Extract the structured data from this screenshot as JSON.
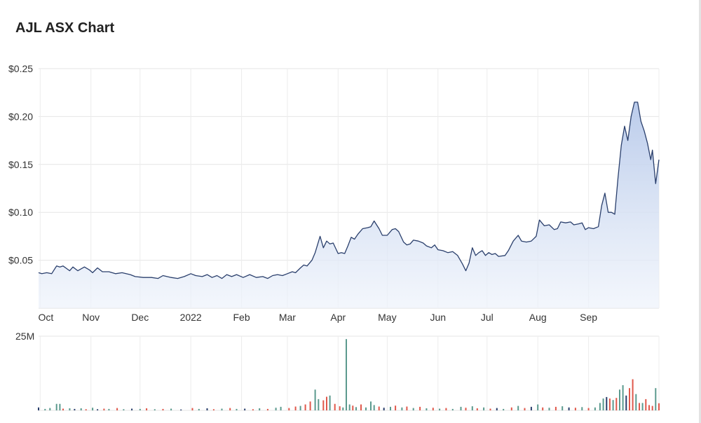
{
  "page": {
    "title": "AJL ASX Chart"
  },
  "chart_data": {
    "type": "area",
    "title": "AJL ASX Chart",
    "ylim": [
      0,
      0.25
    ],
    "y_ticks": [
      "$0.25",
      "$0.20",
      "$0.15",
      "$0.10",
      "$0.05"
    ],
    "y_tick_values": [
      0.25,
      0.2,
      0.15,
      0.1,
      0.05
    ],
    "x_ticks": [
      "Oct",
      "Nov",
      "Dec",
      "2022",
      "Feb",
      "Mar",
      "Apr",
      "May",
      "Jun",
      "Jul",
      "Aug",
      "Sep"
    ],
    "x_tick_dates": [
      "2021-10-01",
      "2021-11-01",
      "2021-12-01",
      "2022-01-01",
      "2022-02-01",
      "2022-03-01",
      "2022-04-01",
      "2022-05-01",
      "2022-06-01",
      "2022-07-01",
      "2022-08-01",
      "2022-09-01"
    ],
    "x_range": [
      "2021-09-30",
      "2022-09-27"
    ],
    "grid": true,
    "line_color": "#2a3f6c",
    "fill_color": "#c9d7f0",
    "series": [
      {
        "points": [
          [
            "2021-09-30",
            0.037
          ],
          [
            "2021-10-02",
            0.036
          ],
          [
            "2021-10-05",
            0.037
          ],
          [
            "2021-10-08",
            0.036
          ],
          [
            "2021-10-11",
            0.044
          ],
          [
            "2021-10-13",
            0.043
          ],
          [
            "2021-10-15",
            0.044
          ],
          [
            "2021-10-19",
            0.039
          ],
          [
            "2021-10-21",
            0.043
          ],
          [
            "2021-10-24",
            0.039
          ],
          [
            "2021-10-28",
            0.043
          ],
          [
            "2021-10-31",
            0.04
          ],
          [
            "2021-11-02",
            0.037
          ],
          [
            "2021-11-05",
            0.042
          ],
          [
            "2021-11-08",
            0.038
          ],
          [
            "2021-11-12",
            0.038
          ],
          [
            "2021-11-16",
            0.036
          ],
          [
            "2021-11-20",
            0.037
          ],
          [
            "2021-11-25",
            0.035
          ],
          [
            "2021-11-28",
            0.033
          ],
          [
            "2021-12-03",
            0.032
          ],
          [
            "2021-12-08",
            0.032
          ],
          [
            "2021-12-12",
            0.031
          ],
          [
            "2021-12-15",
            0.034
          ],
          [
            "2021-12-20",
            0.032
          ],
          [
            "2021-12-24",
            0.031
          ],
          [
            "2021-12-28",
            0.033
          ],
          [
            "2022-01-01",
            0.036
          ],
          [
            "2022-01-04",
            0.034
          ],
          [
            "2022-01-08",
            0.033
          ],
          [
            "2022-01-11",
            0.035
          ],
          [
            "2022-01-14",
            0.032
          ],
          [
            "2022-01-17",
            0.034
          ],
          [
            "2022-01-20",
            0.031
          ],
          [
            "2022-01-23",
            0.035
          ],
          [
            "2022-01-26",
            0.033
          ],
          [
            "2022-01-29",
            0.035
          ],
          [
            "2022-02-02",
            0.032
          ],
          [
            "2022-02-06",
            0.035
          ],
          [
            "2022-02-10",
            0.032
          ],
          [
            "2022-02-14",
            0.033
          ],
          [
            "2022-02-17",
            0.031
          ],
          [
            "2022-02-20",
            0.034
          ],
          [
            "2022-02-23",
            0.035
          ],
          [
            "2022-02-26",
            0.034
          ],
          [
            "2022-03-01",
            0.036
          ],
          [
            "2022-03-04",
            0.038
          ],
          [
            "2022-03-06",
            0.037
          ],
          [
            "2022-03-09",
            0.042
          ],
          [
            "2022-03-11",
            0.045
          ],
          [
            "2022-03-13",
            0.044
          ],
          [
            "2022-03-16",
            0.05
          ],
          [
            "2022-03-18",
            0.058
          ],
          [
            "2022-03-21",
            0.075
          ],
          [
            "2022-03-23",
            0.063
          ],
          [
            "2022-03-25",
            0.07
          ],
          [
            "2022-03-27",
            0.067
          ],
          [
            "2022-03-29",
            0.068
          ],
          [
            "2022-04-01",
            0.057
          ],
          [
            "2022-04-03",
            0.058
          ],
          [
            "2022-04-05",
            0.057
          ],
          [
            "2022-04-07",
            0.065
          ],
          [
            "2022-04-09",
            0.074
          ],
          [
            "2022-04-11",
            0.072
          ],
          [
            "2022-04-13",
            0.077
          ],
          [
            "2022-04-16",
            0.083
          ],
          [
            "2022-04-19",
            0.084
          ],
          [
            "2022-04-21",
            0.085
          ],
          [
            "2022-04-23",
            0.091
          ],
          [
            "2022-04-26",
            0.083
          ],
          [
            "2022-04-28",
            0.076
          ],
          [
            "2022-05-01",
            0.076
          ],
          [
            "2022-05-04",
            0.082
          ],
          [
            "2022-05-06",
            0.083
          ],
          [
            "2022-05-08",
            0.08
          ],
          [
            "2022-05-11",
            0.069
          ],
          [
            "2022-05-13",
            0.066
          ],
          [
            "2022-05-15",
            0.067
          ],
          [
            "2022-05-17",
            0.071
          ],
          [
            "2022-05-20",
            0.07
          ],
          [
            "2022-05-23",
            0.068
          ],
          [
            "2022-05-25",
            0.065
          ],
          [
            "2022-05-28",
            0.063
          ],
          [
            "2022-05-30",
            0.066
          ],
          [
            "2022-06-01",
            0.061
          ],
          [
            "2022-06-04",
            0.06
          ],
          [
            "2022-06-07",
            0.058
          ],
          [
            "2022-06-10",
            0.059
          ],
          [
            "2022-06-13",
            0.055
          ],
          [
            "2022-06-16",
            0.046
          ],
          [
            "2022-06-18",
            0.039
          ],
          [
            "2022-06-20",
            0.047
          ],
          [
            "2022-06-22",
            0.063
          ],
          [
            "2022-06-24",
            0.055
          ],
          [
            "2022-06-26",
            0.058
          ],
          [
            "2022-06-28",
            0.06
          ],
          [
            "2022-06-30",
            0.055
          ],
          [
            "2022-07-02",
            0.058
          ],
          [
            "2022-07-04",
            0.056
          ],
          [
            "2022-07-06",
            0.057
          ],
          [
            "2022-07-08",
            0.054
          ],
          [
            "2022-07-12",
            0.055
          ],
          [
            "2022-07-14",
            0.06
          ],
          [
            "2022-07-17",
            0.07
          ],
          [
            "2022-07-20",
            0.076
          ],
          [
            "2022-07-22",
            0.07
          ],
          [
            "2022-07-25",
            0.069
          ],
          [
            "2022-07-28",
            0.07
          ],
          [
            "2022-07-31",
            0.075
          ],
          [
            "2022-08-02",
            0.092
          ],
          [
            "2022-08-05",
            0.086
          ],
          [
            "2022-08-08",
            0.087
          ],
          [
            "2022-08-11",
            0.082
          ],
          [
            "2022-08-13",
            0.083
          ],
          [
            "2022-08-15",
            0.09
          ],
          [
            "2022-08-18",
            0.089
          ],
          [
            "2022-08-21",
            0.09
          ],
          [
            "2022-08-23",
            0.087
          ],
          [
            "2022-08-26",
            0.088
          ],
          [
            "2022-08-28",
            0.089
          ],
          [
            "2022-08-30",
            0.082
          ],
          [
            "2022-09-01",
            0.084
          ],
          [
            "2022-09-04",
            0.083
          ],
          [
            "2022-09-07",
            0.085
          ],
          [
            "2022-09-09",
            0.107
          ],
          [
            "2022-09-11",
            0.12
          ],
          [
            "2022-09-13",
            0.1
          ],
          [
            "2022-09-15",
            0.1
          ],
          [
            "2022-09-17",
            0.098
          ],
          [
            "2022-09-19",
            0.136
          ],
          [
            "2022-09-21",
            0.17
          ],
          [
            "2022-09-23",
            0.19
          ],
          [
            "2022-09-25",
            0.175
          ],
          [
            "2022-09-27",
            0.2
          ],
          [
            "2022-09-29",
            0.215
          ],
          [
            "2022-10-01",
            0.215
          ],
          [
            "2022-10-03",
            0.195
          ],
          [
            "2022-10-05",
            0.185
          ],
          [
            "2022-10-07",
            0.172
          ],
          [
            "2022-10-09",
            0.155
          ],
          [
            "2022-10-10",
            0.165
          ],
          [
            "2022-10-12",
            0.13
          ],
          [
            "2022-10-14",
            0.155
          ]
        ]
      }
    ],
    "volume": {
      "label": "25M",
      "max": 25000000,
      "up_color": "#5b9a8e",
      "down_color": "#e0584b",
      "flat_color": "#2a3f6c",
      "bars": [
        [
          "2021-09-30",
          1.0,
          "flat"
        ],
        [
          "2021-10-04",
          0.5,
          "up"
        ],
        [
          "2021-10-07",
          0.8,
          "up"
        ],
        [
          "2021-10-11",
          2.2,
          "up"
        ],
        [
          "2021-10-13",
          2.2,
          "up"
        ],
        [
          "2021-10-15",
          0.6,
          "down"
        ],
        [
          "2021-10-19",
          0.7,
          "up"
        ],
        [
          "2021-10-22",
          0.5,
          "flat"
        ],
        [
          "2021-10-26",
          0.7,
          "up"
        ],
        [
          "2021-10-29",
          0.4,
          "down"
        ],
        [
          "2021-11-02",
          0.9,
          "up"
        ],
        [
          "2021-11-05",
          0.4,
          "flat"
        ],
        [
          "2021-11-09",
          0.6,
          "down"
        ],
        [
          "2021-11-12",
          0.5,
          "up"
        ],
        [
          "2021-11-17",
          0.8,
          "down"
        ],
        [
          "2021-11-21",
          0.4,
          "up"
        ],
        [
          "2021-11-26",
          0.6,
          "flat"
        ],
        [
          "2021-12-01",
          0.5,
          "up"
        ],
        [
          "2021-12-05",
          0.7,
          "down"
        ],
        [
          "2021-12-10",
          0.4,
          "up"
        ],
        [
          "2021-12-15",
          0.5,
          "down"
        ],
        [
          "2021-12-20",
          0.6,
          "up"
        ],
        [
          "2021-12-26",
          0.3,
          "flat"
        ],
        [
          "2022-01-02",
          0.8,
          "down"
        ],
        [
          "2022-01-06",
          0.5,
          "up"
        ],
        [
          "2022-01-11",
          0.7,
          "flat"
        ],
        [
          "2022-01-15",
          0.4,
          "down"
        ],
        [
          "2022-01-20",
          0.6,
          "up"
        ],
        [
          "2022-01-25",
          0.8,
          "down"
        ],
        [
          "2022-01-29",
          0.5,
          "up"
        ],
        [
          "2022-02-03",
          0.6,
          "flat"
        ],
        [
          "2022-02-08",
          0.4,
          "down"
        ],
        [
          "2022-02-12",
          0.7,
          "up"
        ],
        [
          "2022-02-17",
          0.5,
          "down"
        ],
        [
          "2022-02-22",
          0.9,
          "up"
        ],
        [
          "2022-02-25",
          1.2,
          "up"
        ],
        [
          "2022-03-02",
          0.8,
          "down"
        ],
        [
          "2022-03-06",
          1.3,
          "down"
        ],
        [
          "2022-03-09",
          1.5,
          "up"
        ],
        [
          "2022-03-12",
          2.0,
          "down"
        ],
        [
          "2022-03-15",
          3.0,
          "down"
        ],
        [
          "2022-03-18",
          7.0,
          "up"
        ],
        [
          "2022-03-20",
          3.8,
          "up"
        ],
        [
          "2022-03-23",
          3.4,
          "down"
        ],
        [
          "2022-03-25",
          4.6,
          "down"
        ],
        [
          "2022-03-27",
          5.0,
          "up"
        ],
        [
          "2022-03-30",
          2.2,
          "down"
        ],
        [
          "2022-04-02",
          1.4,
          "down"
        ],
        [
          "2022-04-04",
          1.0,
          "up"
        ],
        [
          "2022-04-06",
          24.0,
          "up"
        ],
        [
          "2022-04-08",
          2.0,
          "up"
        ],
        [
          "2022-04-10",
          1.6,
          "down"
        ],
        [
          "2022-04-12",
          1.1,
          "up"
        ],
        [
          "2022-04-15",
          2.0,
          "down"
        ],
        [
          "2022-04-18",
          1.0,
          "up"
        ],
        [
          "2022-04-21",
          3.0,
          "up"
        ],
        [
          "2022-04-23",
          1.8,
          "up"
        ],
        [
          "2022-04-26",
          1.3,
          "down"
        ],
        [
          "2022-04-29",
          0.9,
          "flat"
        ],
        [
          "2022-05-03",
          1.2,
          "up"
        ],
        [
          "2022-05-06",
          1.6,
          "down"
        ],
        [
          "2022-05-10",
          1.0,
          "up"
        ],
        [
          "2022-05-13",
          1.3,
          "down"
        ],
        [
          "2022-05-17",
          0.8,
          "up"
        ],
        [
          "2022-05-21",
          1.2,
          "down"
        ],
        [
          "2022-05-25",
          0.7,
          "up"
        ],
        [
          "2022-05-29",
          0.9,
          "down"
        ],
        [
          "2022-06-02",
          0.6,
          "up"
        ],
        [
          "2022-06-06",
          0.8,
          "down"
        ],
        [
          "2022-06-10",
          0.5,
          "up"
        ],
        [
          "2022-06-15",
          1.2,
          "up"
        ],
        [
          "2022-06-18",
          0.9,
          "down"
        ],
        [
          "2022-06-22",
          1.4,
          "up"
        ],
        [
          "2022-06-25",
          0.7,
          "down"
        ],
        [
          "2022-06-29",
          1.0,
          "up"
        ],
        [
          "2022-07-03",
          0.6,
          "down"
        ],
        [
          "2022-07-07",
          0.8,
          "flat"
        ],
        [
          "2022-07-11",
          0.5,
          "up"
        ],
        [
          "2022-07-16",
          1.0,
          "down"
        ],
        [
          "2022-07-20",
          1.5,
          "up"
        ],
        [
          "2022-07-24",
          0.8,
          "down"
        ],
        [
          "2022-07-28",
          1.2,
          "flat"
        ],
        [
          "2022-08-01",
          2.0,
          "up"
        ],
        [
          "2022-08-04",
          1.0,
          "down"
        ],
        [
          "2022-08-08",
          0.9,
          "up"
        ],
        [
          "2022-08-12",
          1.2,
          "down"
        ],
        [
          "2022-08-16",
          1.4,
          "up"
        ],
        [
          "2022-08-20",
          1.0,
          "flat"
        ],
        [
          "2022-08-24",
          0.9,
          "down"
        ],
        [
          "2022-08-28",
          1.1,
          "up"
        ],
        [
          "2022-09-01",
          0.8,
          "down"
        ],
        [
          "2022-09-05",
          1.0,
          "up"
        ],
        [
          "2022-09-08",
          2.5,
          "up"
        ],
        [
          "2022-09-10",
          4.0,
          "up"
        ],
        [
          "2022-09-12",
          4.5,
          "flat"
        ],
        [
          "2022-09-14",
          4.0,
          "down"
        ],
        [
          "2022-09-16",
          3.5,
          "up"
        ],
        [
          "2022-09-18",
          4.2,
          "down"
        ],
        [
          "2022-09-20",
          7.0,
          "up"
        ],
        [
          "2022-09-22",
          8.5,
          "up"
        ],
        [
          "2022-09-24",
          5.0,
          "flat"
        ],
        [
          "2022-09-26",
          7.5,
          "down"
        ],
        [
          "2022-09-28",
          10.5,
          "down"
        ],
        [
          "2022-09-30",
          5.5,
          "up"
        ],
        [
          "2022-10-02",
          2.5,
          "down"
        ],
        [
          "2022-10-04",
          2.5,
          "up"
        ],
        [
          "2022-10-06",
          3.8,
          "down"
        ],
        [
          "2022-10-08",
          1.8,
          "down"
        ],
        [
          "2022-10-10",
          1.5,
          "down"
        ],
        [
          "2022-10-12",
          7.5,
          "up"
        ],
        [
          "2022-10-14",
          2.4,
          "down"
        ]
      ]
    }
  }
}
